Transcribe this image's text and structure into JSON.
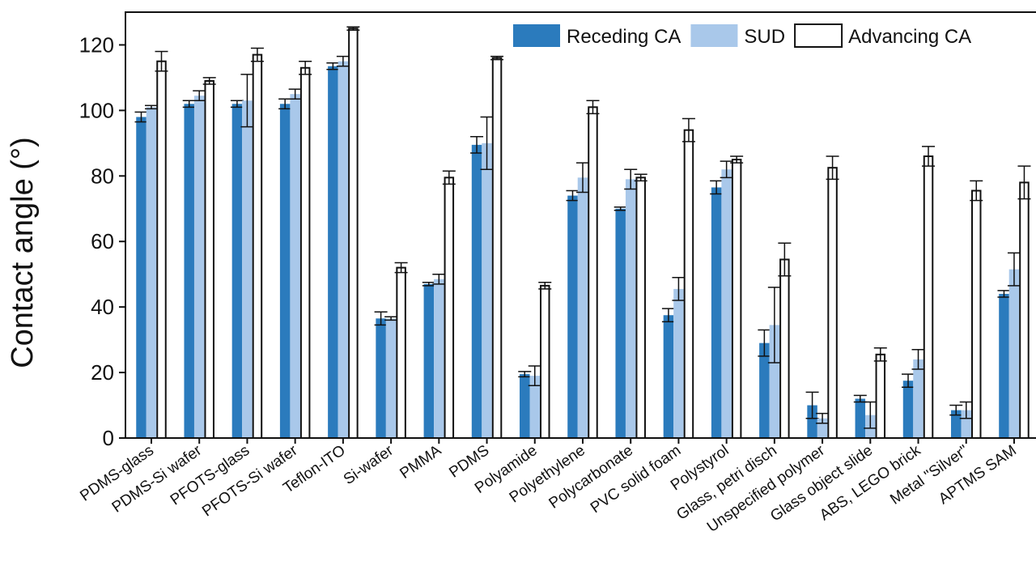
{
  "chart_data": {
    "type": "bar",
    "title": "",
    "xlabel": "",
    "ylabel": "Contact angle (°)",
    "ylim": [
      0,
      130
    ],
    "yticks": [
      0,
      20,
      40,
      60,
      80,
      100,
      120
    ],
    "grid": false,
    "legend_position": "top-right",
    "categories": [
      "PDMS-glass",
      "PDMS-Si wafer",
      "PFOTS-glass",
      "PFOTS-Si wafer",
      "Teflon-ITO",
      "Si-wafer",
      "PMMA",
      "PDMS",
      "Polyamide",
      "Polyethylene",
      "Polycarbonate",
      "PVC solid foam",
      "Polystyrol",
      "Glass, petri disch",
      "Unspecified polymer",
      "Glass object slide",
      "ABS, LEGO brick",
      "Metal \"Silver\"",
      "APTMS SAM"
    ],
    "series": [
      {
        "name": "Receding CA",
        "color": "#2b7bbd",
        "values": [
          98,
          102,
          102,
          102,
          113.5,
          36.5,
          47,
          89.5,
          19.5,
          74,
          70,
          37.5,
          76.5,
          29,
          10,
          12,
          17.5,
          8.5,
          44
        ],
        "errors": [
          1.5,
          1,
          1,
          1.5,
          1,
          2,
          0.5,
          2.5,
          0.8,
          1.5,
          0.5,
          2,
          2,
          4,
          4,
          1,
          2,
          1.5,
          1
        ]
      },
      {
        "name": "SUD",
        "color": "#a9c8ea",
        "values": [
          101,
          104.5,
          103,
          105,
          115,
          36.5,
          48.5,
          90,
          19,
          79.5,
          79,
          45.5,
          82,
          34.5,
          6,
          7,
          24,
          8.5,
          51.5
        ],
        "errors": [
          0.5,
          1.5,
          8,
          1.5,
          1.5,
          0.5,
          1.5,
          8,
          3,
          4.5,
          3,
          3.5,
          2.5,
          11.5,
          1.5,
          4,
          3,
          2.5,
          5
        ]
      },
      {
        "name": "Advancing CA",
        "color": "#ffffff",
        "values": [
          115,
          109,
          117,
          113,
          125,
          52,
          79.5,
          116,
          46.5,
          101,
          79.5,
          94,
          85,
          54.5,
          82.5,
          25.5,
          86,
          75.5,
          78
        ],
        "errors": [
          3,
          1,
          2,
          2,
          0.5,
          1.5,
          2,
          0.5,
          1,
          2,
          1,
          3.5,
          1,
          5,
          3.5,
          2,
          3,
          3,
          5
        ]
      }
    ]
  }
}
